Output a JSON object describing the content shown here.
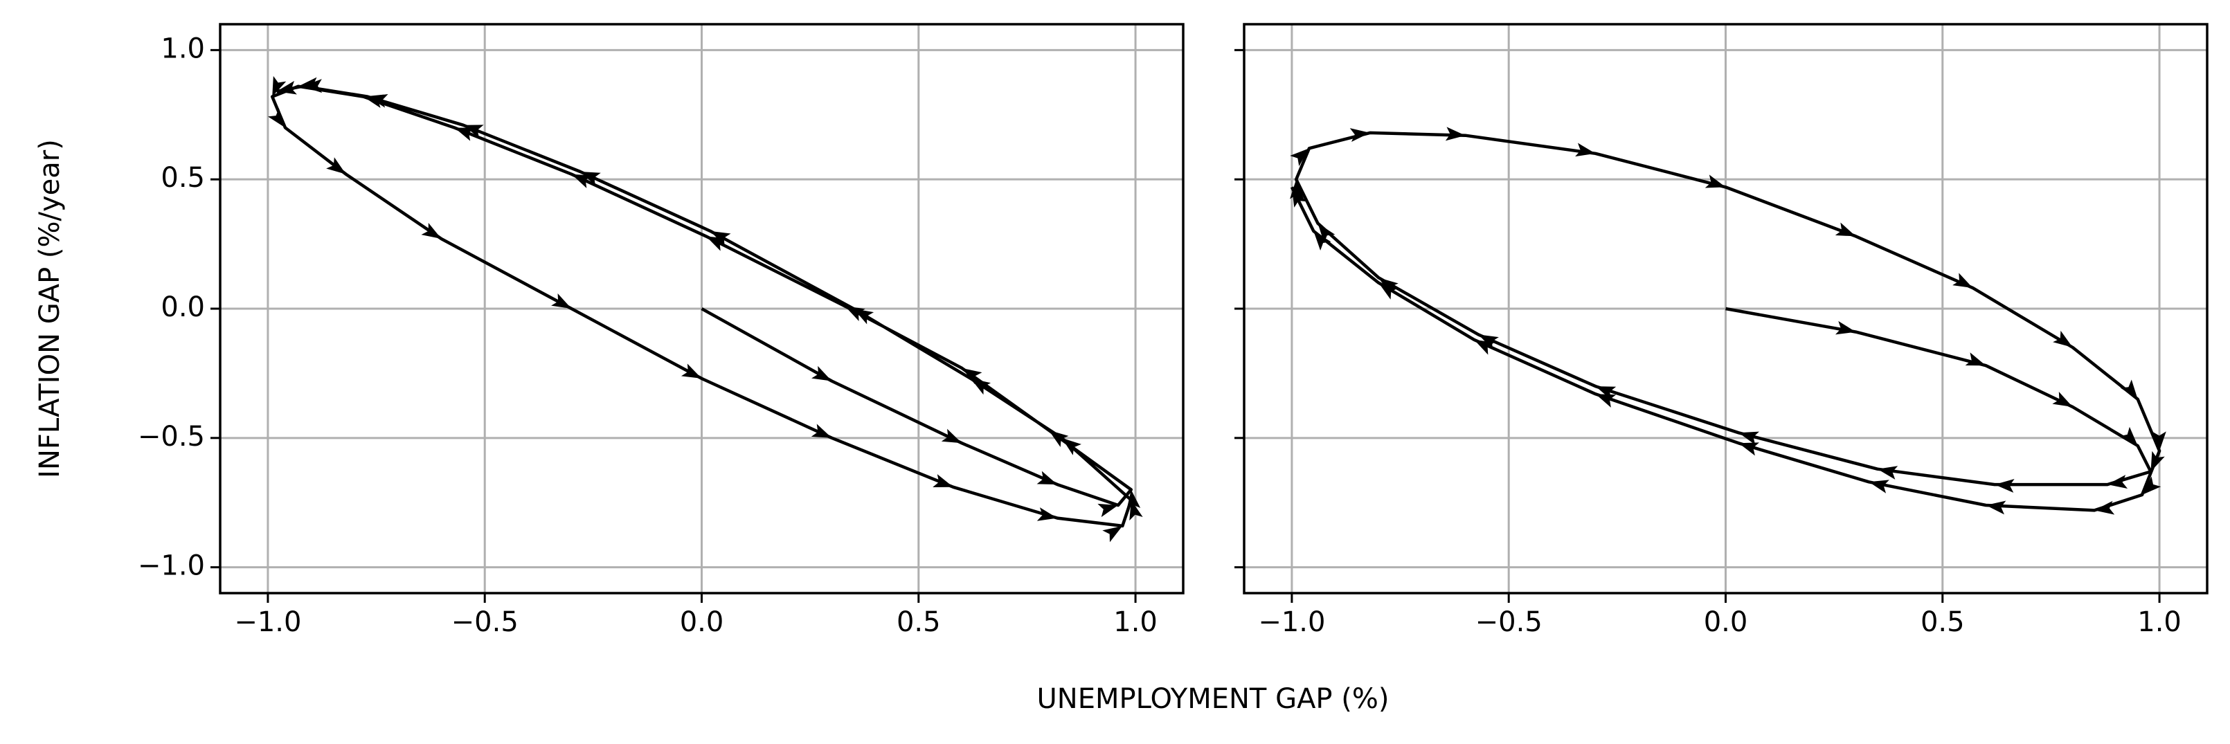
{
  "chart_data": [
    {
      "type": "line",
      "xlabel": "UNEMPLOYMENT GAP (%)",
      "ylabel": "INFLATION GAP (%/year)",
      "grid": true,
      "color": "#000000",
      "show_ytick_labels": true,
      "xlim": [
        -1.11,
        1.11
      ],
      "ylim": [
        -1.1,
        1.1
      ],
      "xticks": [
        {
          "value": -1,
          "label": "−1.0"
        },
        {
          "value": -0.5,
          "label": "−0.5"
        },
        {
          "value": 0,
          "label": "0.0"
        },
        {
          "value": 0.5,
          "label": "0.5"
        },
        {
          "value": 1,
          "label": "1.0"
        }
      ],
      "yticks": [
        {
          "value": -1,
          "label": "−1.0"
        },
        {
          "value": -0.5,
          "label": "−0.5"
        },
        {
          "value": 0,
          "label": "0.0"
        },
        {
          "value": 0.5,
          "label": "0.5"
        },
        {
          "value": 1,
          "label": "1.0"
        }
      ],
      "x": [
        0,
        0.3,
        0.6,
        0.82,
        0.96,
        0.99,
        0.8,
        0.6,
        0.33,
        0.01,
        -0.3,
        -0.57,
        -0.78,
        -0.93,
        -0.99,
        -0.96,
        -0.82,
        -0.6,
        -0.3,
        0,
        0.3,
        0.58,
        0.82,
        0.97,
        0.99,
        0.83,
        0.62,
        0.35,
        0.02,
        -0.28,
        -0.55,
        -0.77,
        -0.92,
        -0.98
      ],
      "y": [
        0,
        -0.28,
        -0.52,
        -0.68,
        -0.76,
        -0.7,
        -0.47,
        -0.23,
        0.01,
        0.28,
        0.52,
        0.7,
        0.82,
        0.86,
        0.82,
        0.7,
        0.52,
        0.27,
        0,
        -0.27,
        -0.5,
        -0.69,
        -0.81,
        -0.84,
        -0.74,
        -0.5,
        -0.27,
        0,
        0.3,
        0.53,
        0.71,
        0.82,
        0.86,
        0.84
      ]
    },
    {
      "type": "line",
      "grid": true,
      "color": "#000000",
      "show_ytick_labels": false,
      "xlim": [
        -1.11,
        1.11
      ],
      "ylim": [
        -1.1,
        1.1
      ],
      "xticks": [
        {
          "value": -1,
          "label": "−1.0"
        },
        {
          "value": -0.5,
          "label": "−0.5"
        },
        {
          "value": 0,
          "label": "0.0"
        },
        {
          "value": 0.5,
          "label": "0.5"
        },
        {
          "value": 1,
          "label": "1.0"
        }
      ],
      "yticks": [
        -1,
        -0.5,
        0,
        0.5,
        1
      ],
      "x": [
        0,
        0.3,
        0.6,
        0.8,
        0.95,
        0.98,
        0.88,
        0.62,
        0.35,
        0.03,
        -0.3,
        -0.57,
        -0.8,
        -0.94,
        -0.99,
        -0.96,
        -0.82,
        -0.6,
        -0.3,
        0,
        0.3,
        0.57,
        0.8,
        0.95,
        1.0,
        0.96,
        0.85,
        0.6,
        0.33,
        0.03,
        -0.3,
        -0.58,
        -0.8,
        -0.95,
        -1.0
      ],
      "y": [
        0,
        -0.09,
        -0.22,
        -0.38,
        -0.53,
        -0.63,
        -0.68,
        -0.68,
        -0.62,
        -0.48,
        -0.3,
        -0.1,
        0.12,
        0.33,
        0.5,
        0.62,
        0.68,
        0.67,
        0.6,
        0.47,
        0.28,
        0.08,
        -0.15,
        -0.35,
        -0.55,
        -0.72,
        -0.78,
        -0.76,
        -0.67,
        -0.52,
        -0.33,
        -0.12,
        0.1,
        0.3,
        0.47
      ]
    }
  ]
}
